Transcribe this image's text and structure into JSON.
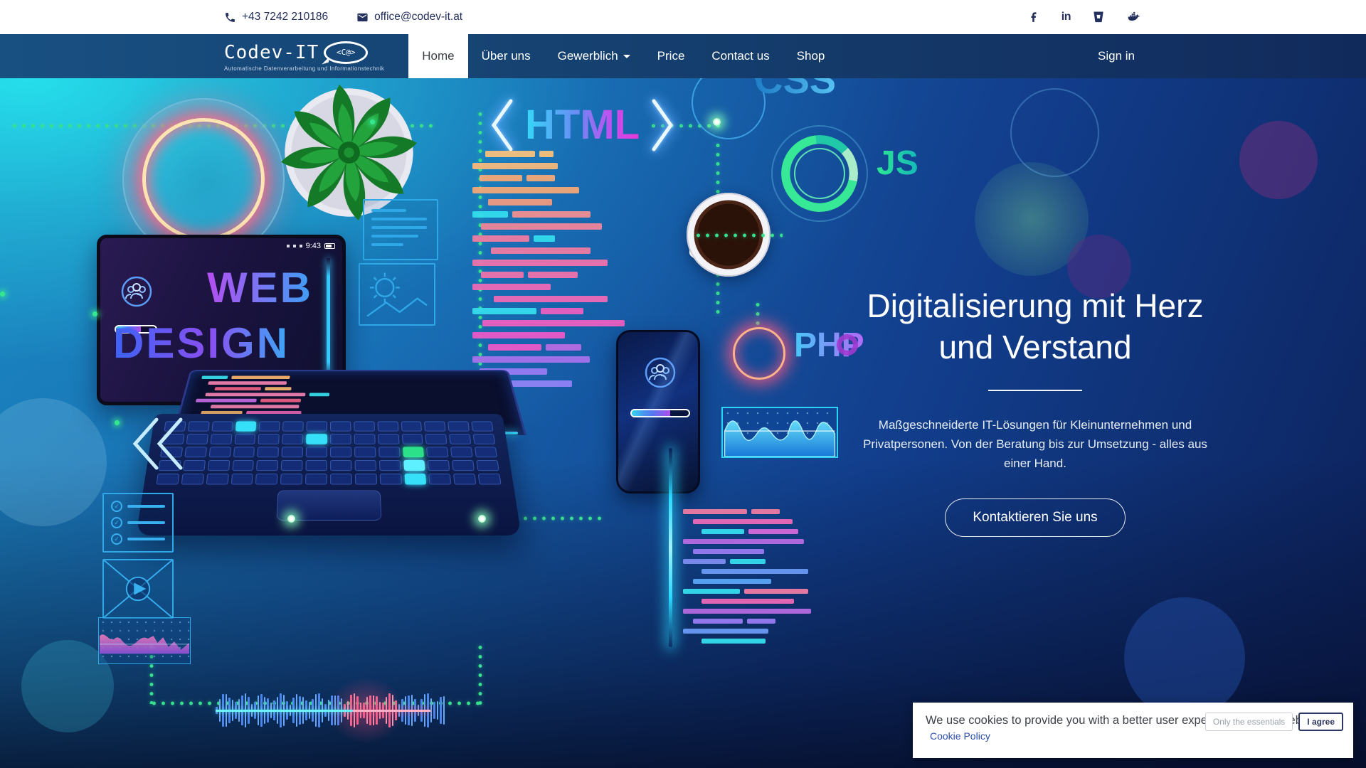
{
  "topbar": {
    "phone": "+43 7242 210186",
    "email": "office@codev-it.at",
    "social": [
      "facebook",
      "linkedin",
      "bitbucket",
      "docker"
    ]
  },
  "navbar": {
    "logo": {
      "title": "Codev-IT",
      "bubble": "<C@>",
      "tagline": "Automatische Datenverarbeitung und Informationstechnik"
    },
    "items": [
      {
        "label": "Home",
        "active": true
      },
      {
        "label": "Über uns",
        "active": false
      },
      {
        "label": "Gewerblich",
        "active": false,
        "dropdown": true
      },
      {
        "label": "Price",
        "active": false
      },
      {
        "label": "Contact us",
        "active": false
      },
      {
        "label": "Shop",
        "active": false
      }
    ],
    "signin": "Sign in"
  },
  "hero": {
    "title": "Digitalisierung mit Herz und Verstand",
    "description": "Maßgeschneiderte IT-Lösungen für Kleinunternehmen und Privatpersonen. Von der Beratung bis zur Umsetzung - alles aus einer Hand.",
    "cta": "Kontaktieren Sie uns",
    "illustration": {
      "html": "HTML",
      "css": "CSS",
      "js": "JS",
      "php": "PHP",
      "web": "WEB",
      "design": "DESIGN",
      "clock": "9:43"
    }
  },
  "cookie": {
    "message": "We use cookies to provide you with a better user experience on this website.",
    "policy": "Cookie Policy",
    "essentials": "Only the essentials",
    "agree": "I agree"
  },
  "colors": {
    "navbar_start": "#185082",
    "navbar_end": "#112a5c",
    "hero_cyan": "#26e4ee",
    "hero_navy": "#0c2058",
    "neon_green": "#37e08c",
    "topbar_icon": "#232f5c",
    "link_blue": "#2d4fae"
  }
}
